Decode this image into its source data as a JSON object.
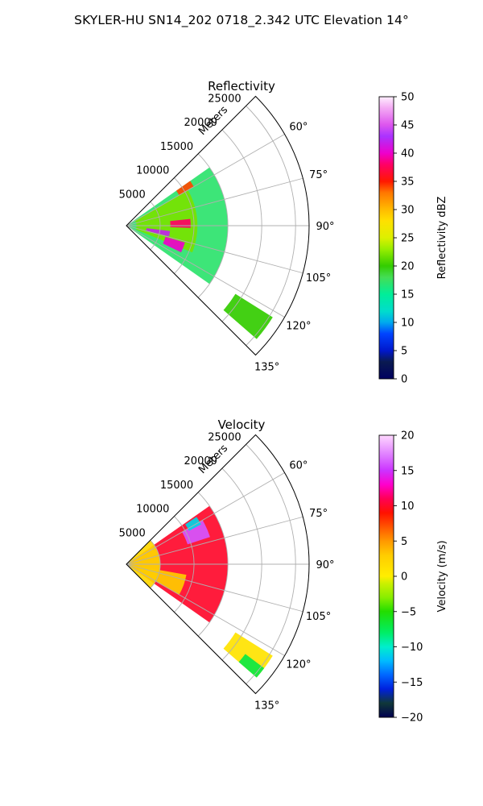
{
  "page_title": "SKYLER-HU  SN14_202  0718_2.342 UTC Elevation 14°",
  "chart_data": [
    {
      "type": "heatmap",
      "subtype": "polar-sector",
      "title": "Reflectivity",
      "radial_axis_label": "Meters",
      "radial_ticks": [
        "5000",
        "10000",
        "15000",
        "20000",
        "25000"
      ],
      "r_max": 27000,
      "angle_ticks": [
        "60°",
        "75°",
        "90°",
        "105°",
        "120°",
        "135°"
      ],
      "angle_range": [
        45,
        135
      ],
      "grid": true,
      "colorbar": {
        "label": "Reflectivity dBZ",
        "min": 0,
        "max": 50,
        "ticks": [
          "0",
          "5",
          "10",
          "15",
          "20",
          "25",
          "30",
          "35",
          "40",
          "45",
          "50"
        ]
      },
      "echo_regions": [
        {
          "angle_range": [
            55,
            125
          ],
          "range_m": [
            0,
            15000
          ],
          "value": 17
        },
        {
          "angle_range": [
            60,
            112
          ],
          "range_m": [
            1500,
            10500
          ],
          "value": 22
        },
        {
          "angle_range": [
            97,
            104
          ],
          "range_m": [
            3000,
            6500
          ],
          "value": 42
        },
        {
          "angle_range": [
            84,
            92
          ],
          "range_m": [
            6500,
            9500
          ],
          "value": 38
        },
        {
          "angle_range": [
            106,
            116
          ],
          "range_m": [
            6000,
            9000
          ],
          "value": 40
        },
        {
          "angle_range": [
            55,
            60
          ],
          "range_m": [
            9000,
            11500
          ],
          "value": 34
        },
        {
          "angle_range": [
            122,
            131
          ],
          "range_m": [
            19000,
            25500
          ],
          "value": 20
        }
      ]
    },
    {
      "type": "heatmap",
      "subtype": "polar-sector",
      "title": "Velocity",
      "radial_axis_label": "Meters",
      "radial_ticks": [
        "5000",
        "10000",
        "15000",
        "20000",
        "25000"
      ],
      "r_max": 27000,
      "angle_ticks": [
        "60°",
        "75°",
        "90°",
        "105°",
        "120°",
        "135°"
      ],
      "angle_range": [
        45,
        135
      ],
      "grid": true,
      "colorbar": {
        "label": "Velocity (m/s)",
        "min": -20,
        "max": 20,
        "ticks": [
          "−20",
          "−15",
          "−10",
          "−5",
          "0",
          "5",
          "10",
          "15",
          "20"
        ]
      },
      "echo_regions": [
        {
          "angle_range": [
            55,
            125
          ],
          "range_m": [
            0,
            15000
          ],
          "value": 10
        },
        {
          "angle_range": [
            45,
            135
          ],
          "range_m": [
            0,
            5000
          ],
          "value": 2
        },
        {
          "angle_range": [
            60,
            72
          ],
          "range_m": [
            9500,
            13000
          ],
          "value": 16
        },
        {
          "angle_range": [
            56,
            62
          ],
          "range_m": [
            10500,
            12500
          ],
          "value": -11
        },
        {
          "angle_range": [
            100,
            120
          ],
          "range_m": [
            2000,
            9000
          ],
          "value": 3
        },
        {
          "angle_range": [
            122,
            131
          ],
          "range_m": [
            19000,
            25500
          ],
          "value": 1
        },
        {
          "angle_range": [
            127,
            131
          ],
          "range_m": [
            22000,
            25500
          ],
          "value": -7
        }
      ]
    }
  ]
}
